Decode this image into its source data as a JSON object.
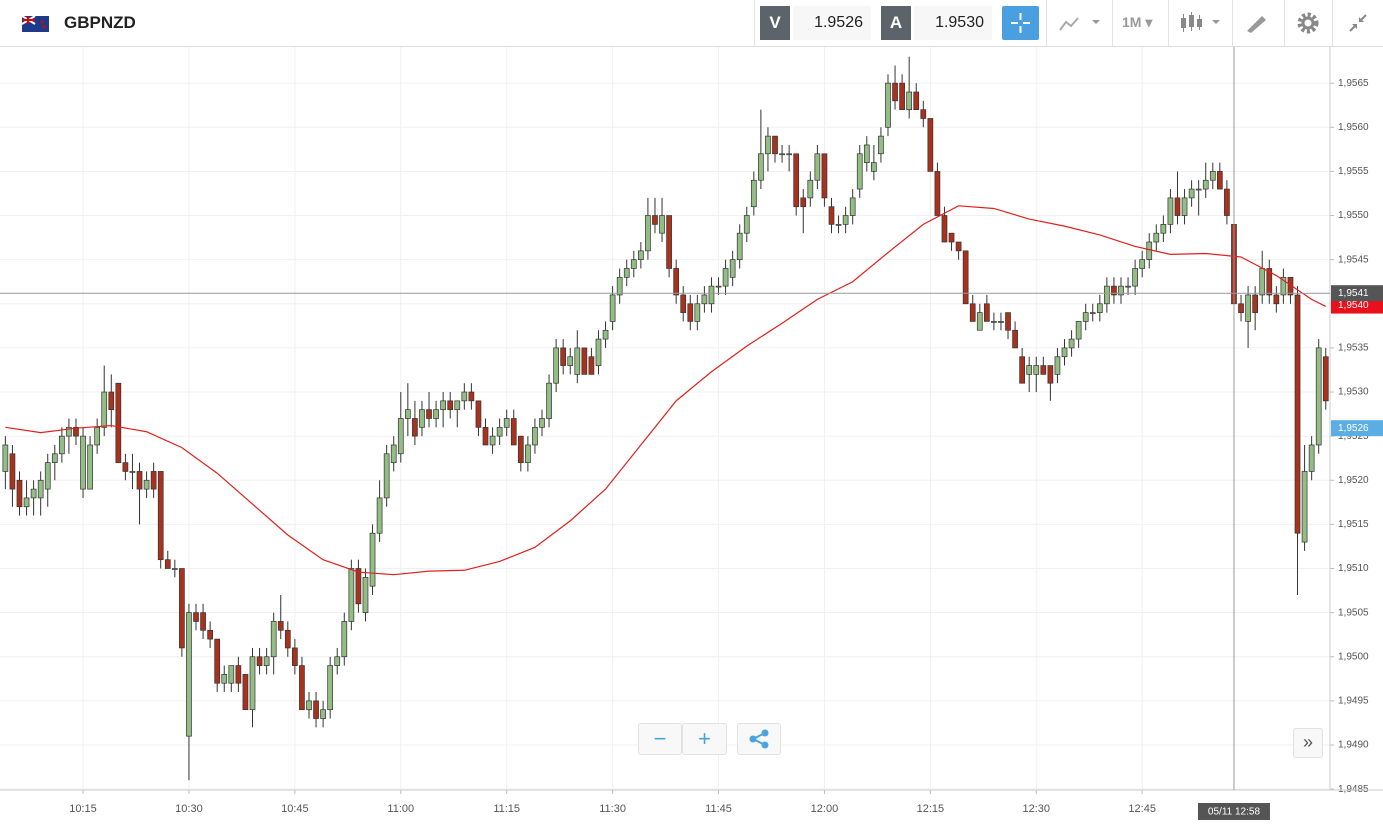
{
  "header": {
    "instrument": "GBPNZD",
    "sell_label": "V",
    "sell_price": "1.9526",
    "buy_label": "A",
    "buy_price": "1.9530",
    "timeframe": "1M"
  },
  "chart_data": {
    "type": "candlestick",
    "xlim": [
      -0.76,
      187.6
    ],
    "xticks": [
      {
        "value": 11,
        "label": "10:15"
      },
      {
        "value": 26,
        "label": "10:30"
      },
      {
        "value": 41,
        "label": "10:45"
      },
      {
        "value": 56,
        "label": "11:00"
      },
      {
        "value": 71,
        "label": "11:15"
      },
      {
        "value": 86,
        "label": "11:30"
      },
      {
        "value": 101,
        "label": "11:45"
      },
      {
        "value": 116,
        "label": "12:00"
      },
      {
        "value": 131,
        "label": "12:15"
      },
      {
        "value": 146,
        "label": "12:30"
      },
      {
        "value": 161,
        "label": "12:45"
      }
    ],
    "ylim": [
      1.94849,
      1.95691
    ],
    "yticks": [
      {
        "value": 1.9485,
        "label": "1,9485"
      },
      {
        "value": 1.949,
        "label": "1,9490"
      },
      {
        "value": 1.9495,
        "label": "1,9495"
      },
      {
        "value": 1.95,
        "label": "1,9500"
      },
      {
        "value": 1.9505,
        "label": "1,9505"
      },
      {
        "value": 1.951,
        "label": "1,9510"
      },
      {
        "value": 1.9515,
        "label": "1,9515"
      },
      {
        "value": 1.952,
        "label": "1,9520"
      },
      {
        "value": 1.9525,
        "label": "1,9525"
      },
      {
        "value": 1.953,
        "label": "1,9530"
      },
      {
        "value": 1.9535,
        "label": "1,9535"
      },
      {
        "value": 1.954,
        "label": "1,9540"
      },
      {
        "value": 1.9545,
        "label": "1,9545"
      },
      {
        "value": 1.955,
        "label": "1,9550"
      },
      {
        "value": 1.9555,
        "label": "1,9555"
      },
      {
        "value": 1.956,
        "label": "1,9560"
      },
      {
        "value": 1.9565,
        "label": "1,9565"
      }
    ],
    "grid": true,
    "up_color": "#93bd85",
    "down_color": "#a8321e",
    "candles": [
      [
        1.9521,
        1.9525,
        1.9519,
        1.9524
      ],
      [
        1.9523,
        1.9524,
        1.9517,
        1.9519
      ],
      [
        1.952,
        1.9521,
        1.9516,
        1.9517
      ],
      [
        1.9517,
        1.952,
        1.9516,
        1.9518
      ],
      [
        1.9518,
        1.952,
        1.9516,
        1.9519
      ],
      [
        1.9518,
        1.9521,
        1.9516,
        1.952
      ],
      [
        1.9519,
        1.9523,
        1.9517,
        1.9522
      ],
      [
        1.9522,
        1.9524,
        1.952,
        1.9523
      ],
      [
        1.9523,
        1.9526,
        1.9522,
        1.9525
      ],
      [
        1.9525,
        1.9527,
        1.9523,
        1.9526
      ],
      [
        1.9526,
        1.9527,
        1.9524,
        1.9525
      ],
      [
        1.9519,
        1.9526,
        1.9518,
        1.9525
      ],
      [
        1.9519,
        1.9525,
        1.9519,
        1.9524
      ],
      [
        1.9524,
        1.9527,
        1.9523,
        1.9526
      ],
      [
        1.9526,
        1.9533,
        1.9525,
        1.953
      ],
      [
        1.953,
        1.9532,
        1.9526,
        1.9528
      ],
      [
        1.9531,
        1.9531,
        1.9522,
        1.9522
      ],
      [
        1.9522,
        1.9523,
        1.952,
        1.9521
      ],
      [
        1.9521,
        1.9523,
        1.9519,
        1.9521
      ],
      [
        1.9521,
        1.9522,
        1.9515,
        1.9519
      ],
      [
        1.9519,
        1.9521,
        1.9518,
        1.952
      ],
      [
        1.9521,
        1.9522,
        1.9518,
        1.9519
      ],
      [
        1.9521,
        1.9521,
        1.951,
        1.9511
      ],
      [
        1.9511,
        1.9512,
        1.951,
        1.951
      ],
      [
        1.951,
        1.9511,
        1.9509,
        1.951
      ],
      [
        1.951,
        1.951,
        1.95,
        1.9501
      ],
      [
        1.9491,
        1.9506,
        1.9486,
        1.9505
      ],
      [
        1.9505,
        1.9506,
        1.9503,
        1.9504
      ],
      [
        1.9505,
        1.9506,
        1.9502,
        1.9503
      ],
      [
        1.9503,
        1.9504,
        1.9501,
        1.9502
      ],
      [
        1.9502,
        1.9502,
        1.9496,
        1.9497
      ],
      [
        1.9497,
        1.9499,
        1.9496,
        1.9498
      ],
      [
        1.9497,
        1.9499,
        1.9496,
        1.9499
      ],
      [
        1.9499,
        1.95,
        1.9496,
        1.9497
      ],
      [
        1.9498,
        1.9498,
        1.9494,
        1.9494
      ],
      [
        1.9494,
        1.9501,
        1.9492,
        1.95
      ],
      [
        1.95,
        1.9501,
        1.9498,
        1.9499
      ],
      [
        1.9499,
        1.9501,
        1.9498,
        1.95
      ],
      [
        1.95,
        1.9505,
        1.9498,
        1.9504
      ],
      [
        1.9504,
        1.9507,
        1.9502,
        1.9503
      ],
      [
        1.9503,
        1.9504,
        1.95,
        1.9501
      ],
      [
        1.9501,
        1.9502,
        1.9498,
        1.9499
      ],
      [
        1.9499,
        1.95,
        1.9494,
        1.9494
      ],
      [
        1.9494,
        1.9496,
        1.9493,
        1.9495
      ],
      [
        1.9495,
        1.9496,
        1.9492,
        1.9493
      ],
      [
        1.9493,
        1.9495,
        1.9492,
        1.9494
      ],
      [
        1.9494,
        1.95,
        1.9493,
        1.9499
      ],
      [
        1.9499,
        1.9501,
        1.9498,
        1.95
      ],
      [
        1.95,
        1.9505,
        1.9499,
        1.9504
      ],
      [
        1.9504,
        1.9511,
        1.9503,
        1.951
      ],
      [
        1.951,
        1.9511,
        1.9505,
        1.9506
      ],
      [
        1.9505,
        1.951,
        1.9504,
        1.9509
      ],
      [
        1.9508,
        1.9515,
        1.9507,
        1.9514
      ],
      [
        1.9514,
        1.952,
        1.9513,
        1.9518
      ],
      [
        1.9518,
        1.9524,
        1.9517,
        1.9523
      ],
      [
        1.9522,
        1.9525,
        1.9521,
        1.9524
      ],
      [
        1.9523,
        1.953,
        1.9522,
        1.9527
      ],
      [
        1.9527,
        1.9531,
        1.9525,
        1.9528
      ],
      [
        1.9527,
        1.9529,
        1.9524,
        1.9525
      ],
      [
        1.9526,
        1.9529,
        1.9525,
        1.9528
      ],
      [
        1.9528,
        1.953,
        1.9526,
        1.9527
      ],
      [
        1.9527,
        1.9529,
        1.9526,
        1.9528
      ],
      [
        1.9528,
        1.953,
        1.9526,
        1.9529
      ],
      [
        1.9529,
        1.953,
        1.9527,
        1.9528
      ],
      [
        1.9528,
        1.9529,
        1.9526,
        1.9529
      ],
      [
        1.9529,
        1.9531,
        1.9528,
        1.953
      ],
      [
        1.953,
        1.9531,
        1.9528,
        1.9529
      ],
      [
        1.9529,
        1.9529,
        1.9525,
        1.9526
      ],
      [
        1.9526,
        1.9527,
        1.9524,
        1.9524
      ],
      [
        1.9524,
        1.9526,
        1.9523,
        1.9525
      ],
      [
        1.9525,
        1.9527,
        1.9524,
        1.9526
      ],
      [
        1.9526,
        1.9528,
        1.9525,
        1.9527
      ],
      [
        1.9527,
        1.9528,
        1.9524,
        1.9524
      ],
      [
        1.9525,
        1.9525,
        1.9521,
        1.9522
      ],
      [
        1.9522,
        1.9525,
        1.9521,
        1.9524
      ],
      [
        1.9524,
        1.9527,
        1.9523,
        1.9526
      ],
      [
        1.9526,
        1.9528,
        1.9525,
        1.9527
      ],
      [
        1.9527,
        1.9532,
        1.9526,
        1.9531
      ],
      [
        1.9531,
        1.9536,
        1.953,
        1.9535
      ],
      [
        1.9535,
        1.9536,
        1.9532,
        1.9533
      ],
      [
        1.9533,
        1.9535,
        1.9532,
        1.9534
      ],
      [
        1.9532,
        1.9537,
        1.9531,
        1.9535
      ],
      [
        1.9535,
        1.9535,
        1.9532,
        1.9532
      ],
      [
        1.9534,
        1.9535,
        1.9532,
        1.9532
      ],
      [
        1.9533,
        1.9537,
        1.9532,
        1.9536
      ],
      [
        1.9536,
        1.9538,
        1.9535,
        1.9537
      ],
      [
        1.9538,
        1.9542,
        1.9537,
        1.9541
      ],
      [
        1.9541,
        1.9544,
        1.954,
        1.9543
      ],
      [
        1.9543,
        1.9545,
        1.9542,
        1.9544
      ],
      [
        1.9544,
        1.9546,
        1.9543,
        1.9545
      ],
      [
        1.9545,
        1.9547,
        1.9544,
        1.9546
      ],
      [
        1.9546,
        1.9552,
        1.9545,
        1.955
      ],
      [
        1.955,
        1.9552,
        1.9548,
        1.9549
      ],
      [
        1.9548,
        1.9552,
        1.9547,
        1.955
      ],
      [
        1.955,
        1.955,
        1.9543,
        1.9544
      ],
      [
        1.9544,
        1.9545,
        1.954,
        1.9541
      ],
      [
        1.9541,
        1.9542,
        1.9538,
        1.9539
      ],
      [
        1.954,
        1.9541,
        1.9537,
        1.9538
      ],
      [
        1.9538,
        1.9541,
        1.9537,
        1.954
      ],
      [
        1.954,
        1.9542,
        1.9539,
        1.9541
      ],
      [
        1.954,
        1.9543,
        1.9539,
        1.9542
      ],
      [
        1.9542,
        1.9543,
        1.9541,
        1.9542
      ],
      [
        1.9542,
        1.9545,
        1.9541,
        1.9544
      ],
      [
        1.9543,
        1.9546,
        1.9542,
        1.9545
      ],
      [
        1.9545,
        1.9549,
        1.9544,
        1.9548
      ],
      [
        1.9548,
        1.9551,
        1.9547,
        1.955
      ],
      [
        1.9551,
        1.9555,
        1.955,
        1.9554
      ],
      [
        1.9554,
        1.9562,
        1.9553,
        1.9557
      ],
      [
        1.9557,
        1.956,
        1.9555,
        1.9559
      ],
      [
        1.9559,
        1.9559,
        1.9556,
        1.9557
      ],
      [
        1.9557,
        1.9558,
        1.9556,
        1.9557
      ],
      [
        1.9557,
        1.9558,
        1.9555,
        1.9557
      ],
      [
        1.9557,
        1.9557,
        1.955,
        1.9551
      ],
      [
        1.9552,
        1.9553,
        1.9548,
        1.9551
      ],
      [
        1.9552,
        1.9555,
        1.9551,
        1.9554
      ],
      [
        1.9554,
        1.9558,
        1.9553,
        1.9557
      ],
      [
        1.9557,
        1.9557,
        1.9551,
        1.9552
      ],
      [
        1.9551,
        1.9552,
        1.9548,
        1.9549
      ],
      [
        1.9549,
        1.955,
        1.9548,
        1.9549
      ],
      [
        1.9549,
        1.9551,
        1.9548,
        1.955
      ],
      [
        1.955,
        1.9553,
        1.9549,
        1.9552
      ],
      [
        1.9553,
        1.9558,
        1.9552,
        1.9557
      ],
      [
        1.9556,
        1.9559,
        1.9555,
        1.9558
      ],
      [
        1.9555,
        1.9558,
        1.9554,
        1.9556
      ],
      [
        1.9557,
        1.956,
        1.9556,
        1.9559
      ],
      [
        1.956,
        1.9566,
        1.9559,
        1.9565
      ],
      [
        1.9565,
        1.9567,
        1.9562,
        1.9563
      ],
      [
        1.9565,
        1.9566,
        1.9562,
        1.9562
      ],
      [
        1.9562,
        1.9568,
        1.9561,
        1.9564
      ],
      [
        1.9564,
        1.9565,
        1.9562,
        1.9562
      ],
      [
        1.9562,
        1.9563,
        1.956,
        1.9561
      ],
      [
        1.9561,
        1.9561,
        1.9555,
        1.9555
      ],
      [
        1.9555,
        1.9556,
        1.955,
        1.955
      ],
      [
        1.955,
        1.9551,
        1.9547,
        1.9547
      ],
      [
        1.9548,
        1.9548,
        1.9546,
        1.9547
      ],
      [
        1.9547,
        1.9547,
        1.9545,
        1.9546
      ],
      [
        1.9546,
        1.9546,
        1.954,
        1.954
      ],
      [
        1.954,
        1.9541,
        1.9538,
        1.9538
      ],
      [
        1.9537,
        1.954,
        1.9537,
        1.9539
      ],
      [
        1.954,
        1.9541,
        1.9538,
        1.9538
      ],
      [
        1.9538,
        1.9539,
        1.9537,
        1.9538
      ],
      [
        1.9538,
        1.9539,
        1.9537,
        1.9538
      ],
      [
        1.9539,
        1.9539,
        1.9536,
        1.9537
      ],
      [
        1.9537,
        1.9538,
        1.9535,
        1.9535
      ],
      [
        1.9534,
        1.9535,
        1.9531,
        1.9531
      ],
      [
        1.9532,
        1.9534,
        1.953,
        1.9533
      ],
      [
        1.9532,
        1.9534,
        1.953,
        1.9533
      ],
      [
        1.9533,
        1.9534,
        1.9532,
        1.9532
      ],
      [
        1.9533,
        1.9533,
        1.9529,
        1.9531
      ],
      [
        1.9532,
        1.9535,
        1.9531,
        1.9534
      ],
      [
        1.9534,
        1.9536,
        1.9533,
        1.9535
      ],
      [
        1.9535,
        1.9537,
        1.9534,
        1.9536
      ],
      [
        1.9536,
        1.9538,
        1.9535,
        1.9538
      ],
      [
        1.9538,
        1.954,
        1.9537,
        1.9539
      ],
      [
        1.9539,
        1.954,
        1.9538,
        1.9539
      ],
      [
        1.9539,
        1.9541,
        1.9538,
        1.954
      ],
      [
        1.954,
        1.9543,
        1.9539,
        1.9542
      ],
      [
        1.9542,
        1.9543,
        1.954,
        1.9541
      ],
      [
        1.9541,
        1.9543,
        1.954,
        1.9542
      ],
      [
        1.9542,
        1.9543,
        1.9541,
        1.9542
      ],
      [
        1.9542,
        1.9545,
        1.9541,
        1.9544
      ],
      [
        1.9544,
        1.9546,
        1.9543,
        1.9545
      ],
      [
        1.9545,
        1.9548,
        1.9544,
        1.9547
      ],
      [
        1.9547,
        1.9549,
        1.9546,
        1.9548
      ],
      [
        1.9548,
        1.955,
        1.9547,
        1.9549
      ],
      [
        1.9549,
        1.9553,
        1.9548,
        1.9552
      ],
      [
        1.9552,
        1.9555,
        1.9549,
        1.955
      ],
      [
        1.955,
        1.9553,
        1.9549,
        1.9552
      ],
      [
        1.9552,
        1.9554,
        1.9551,
        1.9553
      ],
      [
        1.9553,
        1.9554,
        1.955,
        1.9553
      ],
      [
        1.9553,
        1.9556,
        1.9552,
        1.9554
      ],
      [
        1.9554,
        1.9556,
        1.9553,
        1.9555
      ],
      [
        1.9555,
        1.9556,
        1.9553,
        1.9553
      ],
      [
        1.9553,
        1.9554,
        1.9549,
        1.955
      ],
      [
        1.9549,
        1.9549,
        1.954,
        1.954
      ],
      [
        1.954,
        1.9541,
        1.9538,
        1.9539
      ],
      [
        1.9538,
        1.9542,
        1.9535,
        1.9541
      ],
      [
        1.9541,
        1.9542,
        1.9537,
        1.9539
      ],
      [
        1.9541,
        1.9546,
        1.954,
        1.9544
      ],
      [
        1.9544,
        1.9545,
        1.954,
        1.9541
      ],
      [
        1.9541,
        1.9542,
        1.9539,
        1.954
      ],
      [
        1.9541,
        1.9544,
        1.954,
        1.9543
      ],
      [
        1.9543,
        1.9543,
        1.954,
        1.9541
      ],
      [
        1.9541,
        1.9542,
        1.9507,
        1.9514
      ],
      [
        1.9513,
        1.9524,
        1.9512,
        1.9521
      ],
      [
        1.9521,
        1.9525,
        1.952,
        1.9524
      ],
      [
        1.9524,
        1.9536,
        1.9523,
        1.9535
      ],
      [
        1.9534,
        1.9535,
        1.9528,
        1.9529
      ]
    ],
    "moving_average": {
      "color": "#e0201b",
      "x": [
        0,
        5,
        10,
        15,
        20,
        25,
        30,
        35,
        40,
        45,
        50,
        55,
        60,
        65,
        70,
        75,
        80,
        85,
        90,
        95,
        100,
        105,
        110,
        115,
        120,
        125,
        130,
        135,
        140,
        145,
        150,
        155,
        160,
        165,
        170,
        175,
        180,
        185,
        187
      ],
      "values": [
        1.9526,
        1.95254,
        1.95259,
        1.95262,
        1.95255,
        1.95237,
        1.95208,
        1.95173,
        1.95138,
        1.9511,
        1.95096,
        1.95093,
        1.95097,
        1.95098,
        1.95108,
        1.95124,
        1.95154,
        1.9519,
        1.9524,
        1.9529,
        1.95323,
        1.95352,
        1.95378,
        1.95405,
        1.95425,
        1.95458,
        1.9549,
        1.95511,
        1.95508,
        1.95496,
        1.95488,
        1.95478,
        1.95465,
        1.95456,
        1.95457,
        1.95453,
        1.95432,
        1.95405,
        1.95397
      ]
    },
    "crosshair": {
      "x": 174,
      "time_label": "05/11 12:58",
      "price": {
        "value": 1.95412,
        "label": "1,9541"
      }
    },
    "price_markers": [
      {
        "value": 1.95398,
        "label": "1,9540",
        "color": "#e8101a"
      },
      {
        "value": 1.95259,
        "label": "1,9526",
        "color": "#5aaee3"
      }
    ]
  }
}
